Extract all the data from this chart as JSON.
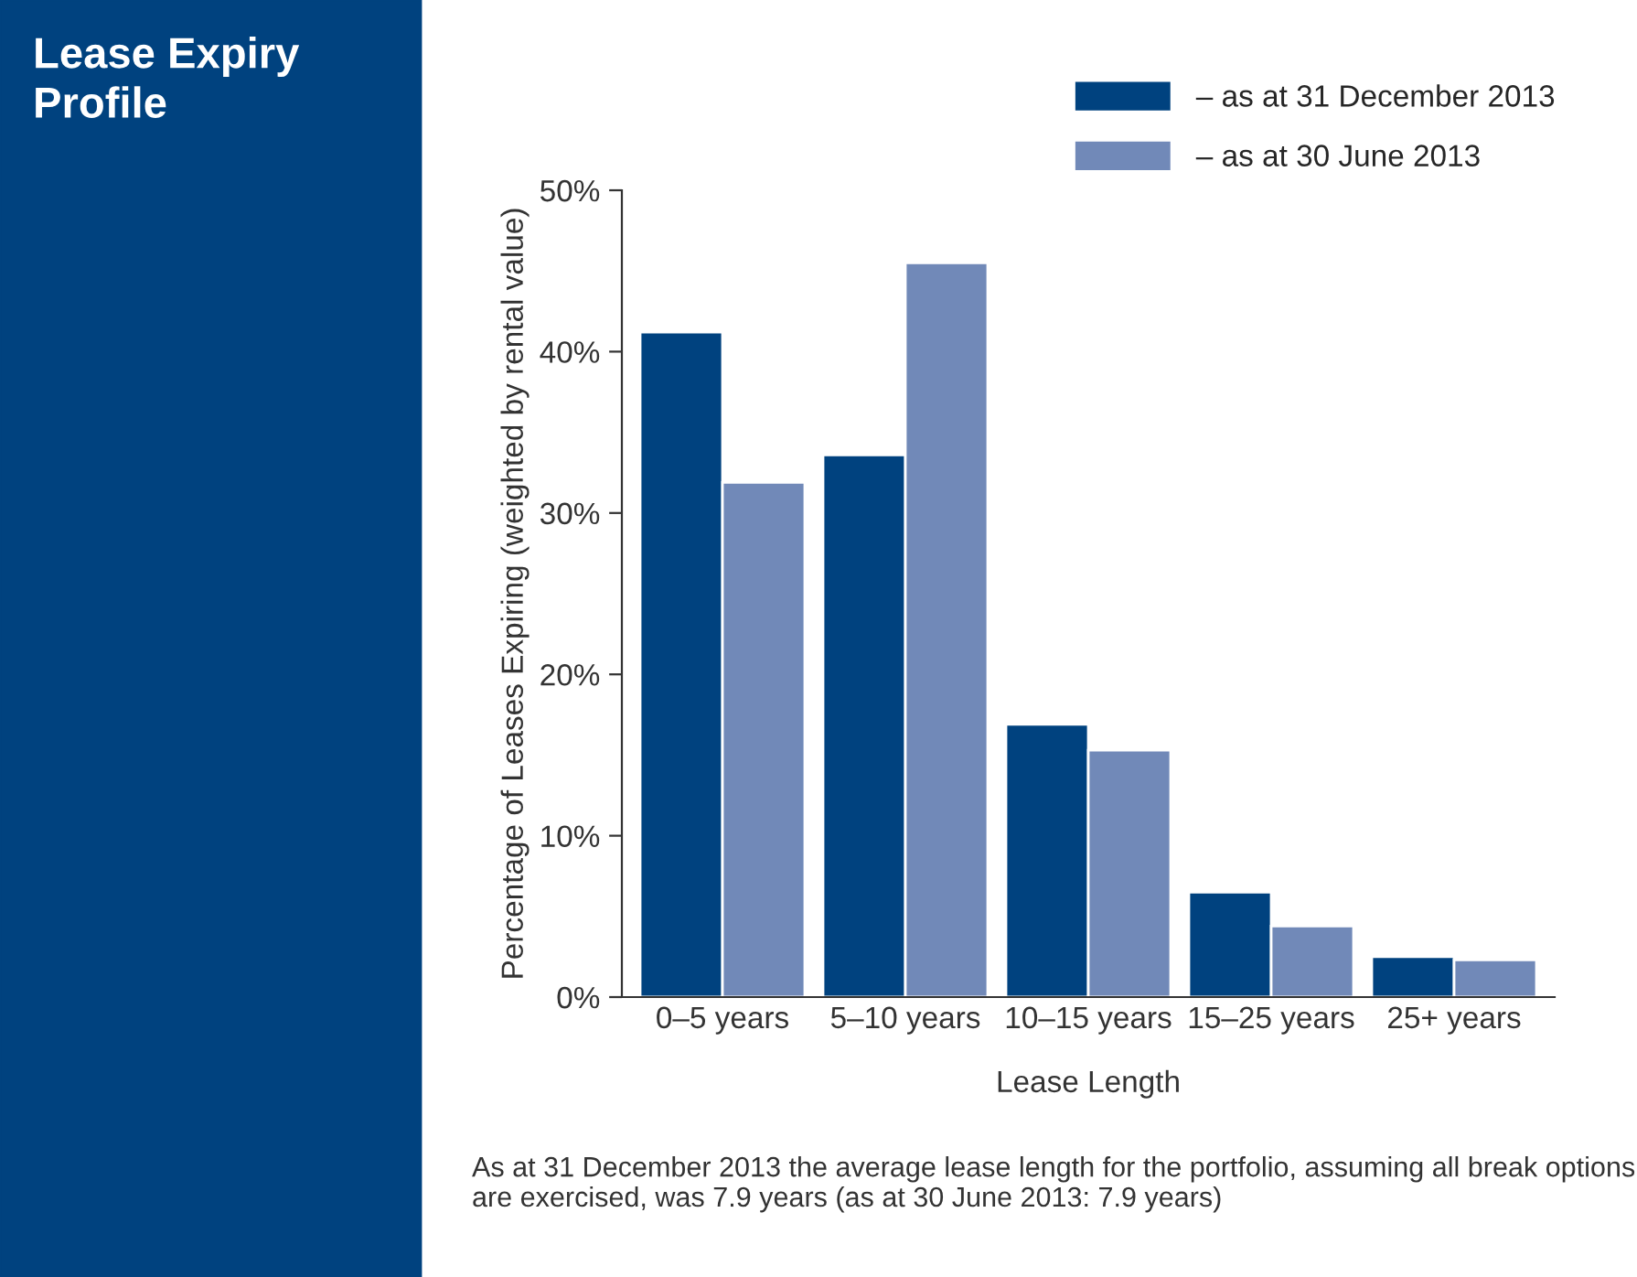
{
  "chart_data": {
    "type": "bar",
    "title": "Lease Expiry Profile",
    "categories": [
      "0–5 years",
      "5–10 years",
      "10–15 years",
      "15–25 years",
      "25+ years"
    ],
    "series": [
      {
        "name": "– as at 31 December 2013",
        "color": "#00427f",
        "values": [
          41.2,
          33.6,
          16.9,
          6.5,
          2.5
        ]
      },
      {
        "name": "– as at 30 June 2013",
        "color": "#7189b8",
        "values": [
          31.9,
          45.5,
          15.3,
          4.4,
          2.3
        ]
      }
    ],
    "xlabel": "Lease Length",
    "ylabel": "Percentage of Leases Expiring (weighted by rental value)",
    "ylim": [
      0,
      50
    ],
    "yticks": [
      {
        "value": 0,
        "label": "0%"
      },
      {
        "value": 10,
        "label": "10%"
      },
      {
        "value": 20,
        "label": "20%"
      },
      {
        "value": 30,
        "label": "30%"
      },
      {
        "value": 40,
        "label": "40%"
      },
      {
        "value": 50,
        "label": "50%"
      }
    ],
    "legend": "top right",
    "grid": false,
    "annotations": [
      "As at 31 December 2013 the average lease length for the portfolio, assuming all break options are exercised, was 7.9 years (as at 30 June 2013: 7.9 years)"
    ]
  }
}
